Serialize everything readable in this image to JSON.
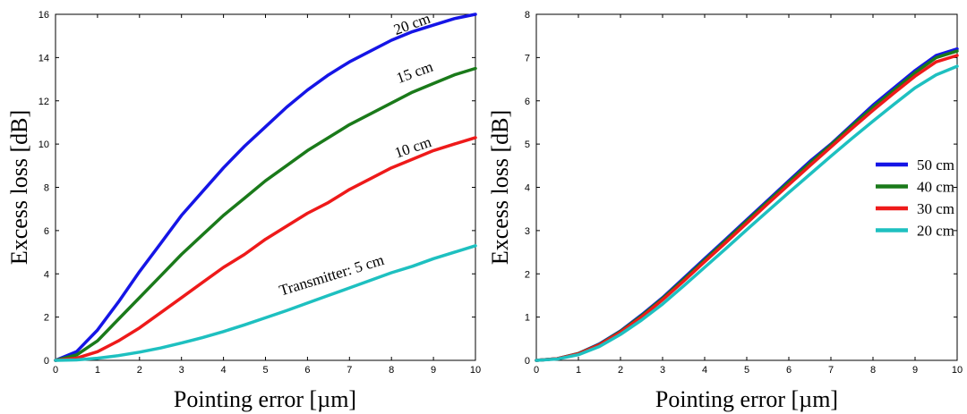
{
  "chart_data": [
    {
      "type": "line",
      "xlabel": "Pointing error [µm]",
      "ylabel": "Excess loss [dB]",
      "xlim": [
        0,
        10
      ],
      "ylim": [
        0,
        16
      ],
      "xticks": [
        "0",
        "1",
        "2",
        "3",
        "4",
        "5",
        "6",
        "7",
        "8",
        "9",
        "10"
      ],
      "yticks": [
        "0",
        "2",
        "4",
        "6",
        "8",
        "10",
        "12",
        "14",
        "16"
      ],
      "grid": false,
      "x": [
        0,
        0.5,
        1,
        1.5,
        2,
        2.5,
        3,
        3.5,
        4,
        4.5,
        5,
        5.5,
        6,
        6.5,
        7,
        7.5,
        8,
        8.5,
        9,
        9.5,
        10
      ],
      "series": [
        {
          "label": "20 cm",
          "color": "#1515e6",
          "values": [
            0,
            0.4,
            1.4,
            2.7,
            4.1,
            5.4,
            6.7,
            7.8,
            8.9,
            9.9,
            10.8,
            11.7,
            12.5,
            13.2,
            13.8,
            14.3,
            14.8,
            15.2,
            15.5,
            15.8,
            16.0
          ]
        },
        {
          "label": "15 cm",
          "color": "#1a7a1a",
          "values": [
            0,
            0.25,
            0.9,
            1.9,
            2.9,
            3.9,
            4.9,
            5.8,
            6.7,
            7.5,
            8.3,
            9.0,
            9.7,
            10.3,
            10.9,
            11.4,
            11.9,
            12.4,
            12.8,
            13.2,
            13.5
          ]
        },
        {
          "label": "10 cm",
          "color": "#ee1a1a",
          "values": [
            0,
            0.1,
            0.4,
            0.9,
            1.5,
            2.2,
            2.9,
            3.6,
            4.3,
            4.9,
            5.6,
            6.2,
            6.8,
            7.3,
            7.9,
            8.4,
            8.9,
            9.3,
            9.7,
            10.0,
            10.3
          ]
        },
        {
          "label": "Transmitter: 5 cm",
          "color": "#1ec0c0",
          "values": [
            0,
            0.02,
            0.1,
            0.22,
            0.38,
            0.57,
            0.8,
            1.05,
            1.33,
            1.64,
            1.97,
            2.3,
            2.65,
            3.0,
            3.35,
            3.7,
            4.05,
            4.35,
            4.7,
            5.0,
            5.3
          ]
        }
      ]
    },
    {
      "type": "line",
      "xlabel": "Pointing error [µm]",
      "ylabel": "Excess loss [dB]",
      "xlim": [
        0,
        10
      ],
      "ylim": [
        0,
        8
      ],
      "xticks": [
        "0",
        "1",
        "2",
        "3",
        "4",
        "5",
        "6",
        "7",
        "8",
        "9",
        "10"
      ],
      "yticks": [
        "0",
        "1",
        "2",
        "3",
        "4",
        "5",
        "6",
        "7",
        "8"
      ],
      "grid": false,
      "legend_position": "right",
      "x": [
        0,
        0.5,
        1,
        1.5,
        2,
        2.5,
        3,
        3.5,
        4,
        4.5,
        5,
        5.5,
        6,
        6.5,
        7,
        7.5,
        8,
        8.5,
        9,
        9.5,
        10
      ],
      "series": [
        {
          "name": "50 cm",
          "color": "#1515e6",
          "values": [
            0,
            0.04,
            0.16,
            0.38,
            0.68,
            1.05,
            1.45,
            1.9,
            2.35,
            2.8,
            3.25,
            3.7,
            4.15,
            4.6,
            5.0,
            5.45,
            5.9,
            6.3,
            6.7,
            7.05,
            7.2
          ]
        },
        {
          "name": "40 cm",
          "color": "#1a7a1a",
          "values": [
            0,
            0.04,
            0.16,
            0.37,
            0.67,
            1.03,
            1.43,
            1.87,
            2.32,
            2.77,
            3.22,
            3.67,
            4.12,
            4.56,
            4.98,
            5.42,
            5.85,
            6.25,
            6.65,
            7.0,
            7.15
          ]
        },
        {
          "name": "30 cm",
          "color": "#ee1a1a",
          "values": [
            0,
            0.04,
            0.15,
            0.36,
            0.65,
            1.0,
            1.4,
            1.83,
            2.28,
            2.72,
            3.17,
            3.62,
            4.06,
            4.5,
            4.93,
            5.36,
            5.78,
            6.18,
            6.57,
            6.9,
            7.05
          ]
        },
        {
          "name": "20 cm",
          "color": "#1ec0c0",
          "values": [
            0,
            0.03,
            0.13,
            0.32,
            0.6,
            0.93,
            1.3,
            1.72,
            2.15,
            2.58,
            3.02,
            3.45,
            3.88,
            4.3,
            4.72,
            5.13,
            5.53,
            5.92,
            6.3,
            6.6,
            6.8
          ]
        }
      ]
    }
  ]
}
